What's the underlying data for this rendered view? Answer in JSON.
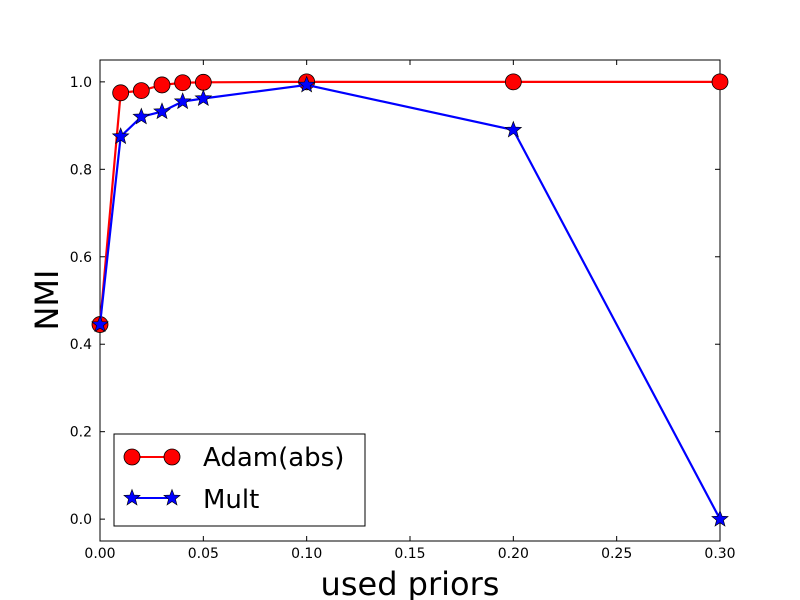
{
  "chart_data": {
    "type": "line",
    "title": "",
    "xlabel": "used priors",
    "ylabel": "NMI",
    "xlim": [
      0.0,
      0.3
    ],
    "ylim": [
      -0.05,
      1.05
    ],
    "xticks": [
      0.0,
      0.05,
      0.1,
      0.15,
      0.2,
      0.25,
      0.3
    ],
    "xtick_labels": [
      "0.00",
      "0.05",
      "0.10",
      "0.15",
      "0.20",
      "0.25",
      "0.30"
    ],
    "yticks": [
      0.0,
      0.2,
      0.4,
      0.6,
      0.8,
      1.0
    ],
    "ytick_labels": [
      "0.0",
      "0.2",
      "0.4",
      "0.6",
      "0.8",
      "1.0"
    ],
    "grid": false,
    "legend_position": "lower-left",
    "series": [
      {
        "name": "Adam(abs)",
        "color": "#ff0000",
        "marker": "circle",
        "x": [
          0.0,
          0.01,
          0.02,
          0.03,
          0.04,
          0.05,
          0.1,
          0.2,
          0.3
        ],
        "y": [
          0.445,
          0.975,
          0.98,
          0.993,
          0.998,
          0.999,
          1.0,
          1.0,
          1.0
        ]
      },
      {
        "name": "Mult",
        "color": "#0000ff",
        "marker": "star",
        "x": [
          0.0,
          0.01,
          0.02,
          0.03,
          0.04,
          0.05,
          0.1,
          0.2,
          0.3
        ],
        "y": [
          0.445,
          0.875,
          0.92,
          0.932,
          0.955,
          0.962,
          0.993,
          0.89,
          0.0
        ]
      }
    ]
  }
}
